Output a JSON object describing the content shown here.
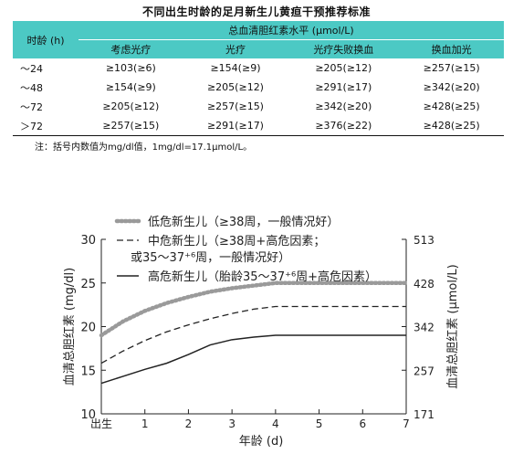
{
  "table": {
    "title": "不同出生时龄的足月新生儿黄疸干预推荐标准",
    "age_header": "时龄 (h)",
    "group_header": "总血清胆红素水平 (μmol/L)",
    "columns": [
      "考虑光疗",
      "光疗",
      "光疗失败换血",
      "换血加光"
    ],
    "rows": [
      {
        "age": "～24",
        "cells": [
          "≥103(≥6)",
          "≥154(≥9)",
          "≥205(≥12)",
          "≥257(≥15)"
        ]
      },
      {
        "age": "～48",
        "cells": [
          "≥154(≥9)",
          "≥205(≥12)",
          "≥291(≥17)",
          "≥342(≥20)"
        ]
      },
      {
        "age": "～72",
        "cells": [
          "≥205(≥12)",
          "≥257(≥15)",
          "≥342(≥20)",
          "≥428(≥25)"
        ]
      },
      {
        "age": "＞72",
        "cells": [
          "≥257(≥15)",
          "≥291(≥17)",
          "≥376(≥22)",
          "≥428(≥25)"
        ]
      }
    ],
    "note": "注：括号内数值为mg/dl值，1mg/dl=17.1μmol/L。"
  },
  "chart_data": {
    "type": "line",
    "title": "",
    "xlabel": "年龄 (d)",
    "ylabel": "血清总胆红素 (mg/dl)",
    "y2label": "血清总胆红素 (μmol/L)",
    "xlim": [
      0,
      7
    ],
    "ylim": [
      10,
      30
    ],
    "x_ticks": [
      0,
      1,
      2,
      3,
      4,
      5,
      6,
      7
    ],
    "x_tick_labels": [
      "出生",
      "1",
      "2",
      "3",
      "4",
      "5",
      "6",
      "7"
    ],
    "y_ticks": [
      10,
      15,
      20,
      25,
      30
    ],
    "y2_ticks": [
      171,
      257,
      342,
      428,
      513
    ],
    "legend_position": "top",
    "grid": false,
    "series": [
      {
        "name": "低危新生儿（≥38周，一般情况好）",
        "style": "dotted-thick",
        "x": [
          0,
          0.5,
          1,
          1.5,
          2,
          2.5,
          3,
          3.5,
          4,
          5,
          6,
          7
        ],
        "y": [
          19,
          20.6,
          21.8,
          22.7,
          23.4,
          24.0,
          24.4,
          24.7,
          25,
          25,
          25,
          25
        ]
      },
      {
        "name_line1": "中危新生儿（≥38周+高危因素；",
        "name_line2": "或35～37⁺⁶周，一般情况好）",
        "style": "dashed",
        "x": [
          0,
          0.5,
          1,
          1.5,
          2,
          2.5,
          3,
          3.5,
          4,
          5,
          6,
          7
        ],
        "y": [
          15.8,
          17.2,
          18.4,
          19.4,
          20.2,
          20.9,
          21.5,
          22.0,
          22.3,
          22.3,
          22.3,
          22.3
        ]
      },
      {
        "name": "高危新生儿（胎龄35～37⁺⁶周+高危因素）",
        "style": "solid",
        "x": [
          0,
          0.5,
          1,
          1.5,
          2,
          2.5,
          3,
          3.5,
          4,
          5,
          6,
          7
        ],
        "y": [
          13.5,
          14.3,
          15.1,
          15.8,
          16.8,
          17.9,
          18.5,
          18.8,
          19.0,
          19.0,
          19.0,
          19.0
        ]
      }
    ]
  }
}
